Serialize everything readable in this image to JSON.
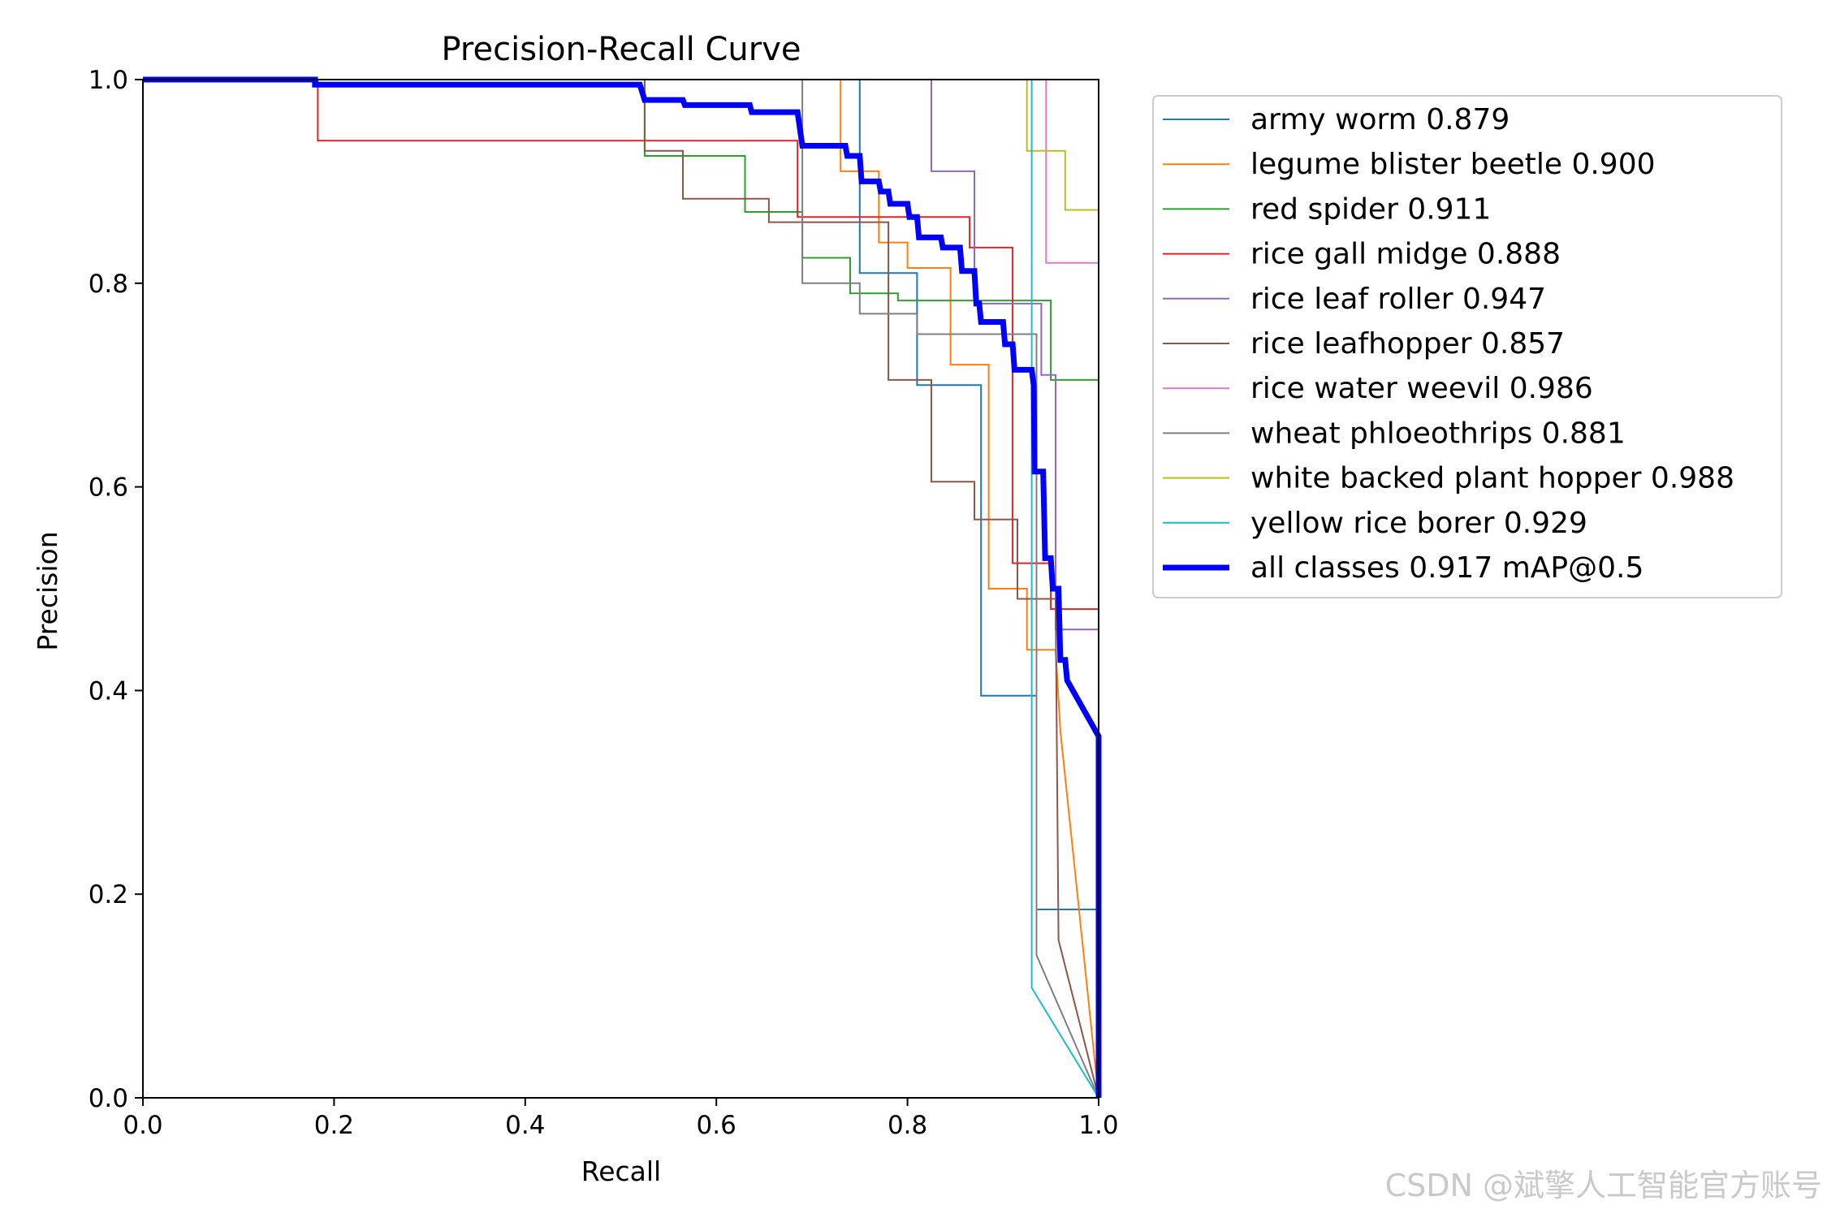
{
  "chart_data": {
    "type": "line",
    "title": "Precision-Recall Curve",
    "xlabel": "Recall",
    "ylabel": "Precision",
    "xlim": [
      0.0,
      1.0
    ],
    "ylim": [
      0.0,
      1.0
    ],
    "xticks": [
      "0.0",
      "0.2",
      "0.4",
      "0.6",
      "0.8",
      "1.0"
    ],
    "yticks": [
      "0.0",
      "0.2",
      "0.4",
      "0.6",
      "0.8",
      "1.0"
    ],
    "grid": false,
    "legend_position": "outside-right-top",
    "series": [
      {
        "name": "army worm 0.879",
        "color": "#1f77b4",
        "width": "thin",
        "steps": [
          [
            0,
            1.0
          ],
          [
            0.75,
            1.0
          ],
          [
            0.75,
            0.81
          ],
          [
            0.81,
            0.81
          ],
          [
            0.81,
            0.7
          ],
          [
            0.877,
            0.7
          ],
          [
            0.877,
            0.395
          ],
          [
            0.935,
            0.395
          ],
          [
            0.935,
            0.185
          ],
          [
            1.0,
            0.185
          ],
          [
            1.0,
            0.0
          ]
        ]
      },
      {
        "name": "legume blister beetle 0.900",
        "color": "#ff7f0e",
        "width": "thin",
        "steps": [
          [
            0,
            1.0
          ],
          [
            0.73,
            1.0
          ],
          [
            0.73,
            0.91
          ],
          [
            0.77,
            0.91
          ],
          [
            0.77,
            0.84
          ],
          [
            0.8,
            0.84
          ],
          [
            0.8,
            0.815
          ],
          [
            0.845,
            0.815
          ],
          [
            0.845,
            0.72
          ],
          [
            0.885,
            0.72
          ],
          [
            0.885,
            0.5
          ],
          [
            0.925,
            0.5
          ],
          [
            0.925,
            0.44
          ],
          [
            0.955,
            0.44
          ],
          [
            0.96,
            0.36
          ],
          [
            1.0,
            0.0
          ]
        ]
      },
      {
        "name": "red spider 0.911",
        "color": "#2ca02c",
        "width": "thin",
        "steps": [
          [
            0,
            1.0
          ],
          [
            0.525,
            1.0
          ],
          [
            0.525,
            0.925
          ],
          [
            0.63,
            0.925
          ],
          [
            0.63,
            0.87
          ],
          [
            0.69,
            0.87
          ],
          [
            0.69,
            0.825
          ],
          [
            0.74,
            0.825
          ],
          [
            0.74,
            0.79
          ],
          [
            0.79,
            0.79
          ],
          [
            0.79,
            0.783
          ],
          [
            0.95,
            0.783
          ],
          [
            0.95,
            0.705
          ],
          [
            1.0,
            0.705
          ],
          [
            1.0,
            0.0
          ]
        ]
      },
      {
        "name": "rice gall midge 0.888",
        "color": "#d62728",
        "width": "thin",
        "steps": [
          [
            0,
            1.0
          ],
          [
            0.183,
            1.0
          ],
          [
            0.183,
            0.94
          ],
          [
            0.685,
            0.94
          ],
          [
            0.685,
            0.865
          ],
          [
            0.865,
            0.865
          ],
          [
            0.865,
            0.835
          ],
          [
            0.91,
            0.835
          ],
          [
            0.91,
            0.525
          ],
          [
            0.95,
            0.525
          ],
          [
            0.95,
            0.48
          ],
          [
            1.0,
            0.48
          ],
          [
            1.0,
            0.0
          ]
        ]
      },
      {
        "name": "rice leaf roller 0.947",
        "color": "#9467bd",
        "width": "thin",
        "steps": [
          [
            0,
            1.0
          ],
          [
            0.825,
            1.0
          ],
          [
            0.825,
            0.91
          ],
          [
            0.87,
            0.91
          ],
          [
            0.87,
            0.78
          ],
          [
            0.94,
            0.78
          ],
          [
            0.94,
            0.71
          ],
          [
            0.955,
            0.71
          ],
          [
            0.955,
            0.46
          ],
          [
            1.0,
            0.46
          ],
          [
            1.0,
            0.0
          ]
        ]
      },
      {
        "name": "rice leafhopper 0.857",
        "color": "#8c564b",
        "width": "thin",
        "steps": [
          [
            0,
            1.0
          ],
          [
            0.525,
            1.0
          ],
          [
            0.525,
            0.93
          ],
          [
            0.565,
            0.93
          ],
          [
            0.565,
            0.883
          ],
          [
            0.655,
            0.883
          ],
          [
            0.655,
            0.86
          ],
          [
            0.78,
            0.86
          ],
          [
            0.78,
            0.705
          ],
          [
            0.825,
            0.705
          ],
          [
            0.825,
            0.605
          ],
          [
            0.87,
            0.605
          ],
          [
            0.87,
            0.568
          ],
          [
            0.915,
            0.568
          ],
          [
            0.915,
            0.49
          ],
          [
            0.955,
            0.49
          ],
          [
            0.958,
            0.155
          ],
          [
            1.0,
            0.0
          ]
        ]
      },
      {
        "name": "rice water weevil 0.986",
        "color": "#e377c2",
        "width": "thin",
        "steps": [
          [
            0,
            1.0
          ],
          [
            0.945,
            1.0
          ],
          [
            0.945,
            0.82
          ],
          [
            1.0,
            0.82
          ],
          [
            1.0,
            0.0
          ]
        ]
      },
      {
        "name": "wheat phloeothrips 0.881",
        "color": "#7f7f7f",
        "width": "thin",
        "steps": [
          [
            0,
            1.0
          ],
          [
            0.69,
            1.0
          ],
          [
            0.69,
            0.8
          ],
          [
            0.75,
            0.8
          ],
          [
            0.75,
            0.77
          ],
          [
            0.81,
            0.77
          ],
          [
            0.81,
            0.75
          ],
          [
            0.935,
            0.75
          ],
          [
            0.935,
            0.14
          ],
          [
            1.0,
            0.0
          ]
        ]
      },
      {
        "name": "white backed plant hopper 0.988",
        "color": "#bcbd22",
        "width": "thin",
        "steps": [
          [
            0,
            1.0
          ],
          [
            0.925,
            1.0
          ],
          [
            0.925,
            0.93
          ],
          [
            0.965,
            0.93
          ],
          [
            0.965,
            0.872
          ],
          [
            1.0,
            0.872
          ],
          [
            1.0,
            0.0
          ]
        ]
      },
      {
        "name": "yellow rice borer 0.929",
        "color": "#17becf",
        "width": "thin",
        "steps": [
          [
            0,
            1.0
          ],
          [
            0.93,
            1.0
          ],
          [
            0.93,
            0.108
          ],
          [
            1.0,
            0.0
          ]
        ]
      },
      {
        "name": "all classes 0.917 mAP@0.5",
        "color": "#0000ff",
        "width": "thick",
        "steps": [
          [
            0,
            1.0
          ],
          [
            0.18,
            1.0
          ],
          [
            0.18,
            0.995
          ],
          [
            0.52,
            0.995
          ],
          [
            0.525,
            0.98
          ],
          [
            0.565,
            0.98
          ],
          [
            0.567,
            0.975
          ],
          [
            0.635,
            0.975
          ],
          [
            0.637,
            0.968
          ],
          [
            0.685,
            0.968
          ],
          [
            0.69,
            0.935
          ],
          [
            0.735,
            0.935
          ],
          [
            0.737,
            0.925
          ],
          [
            0.75,
            0.925
          ],
          [
            0.752,
            0.9
          ],
          [
            0.77,
            0.9
          ],
          [
            0.772,
            0.89
          ],
          [
            0.78,
            0.89
          ],
          [
            0.782,
            0.878
          ],
          [
            0.8,
            0.878
          ],
          [
            0.802,
            0.865
          ],
          [
            0.81,
            0.865
          ],
          [
            0.812,
            0.845
          ],
          [
            0.835,
            0.845
          ],
          [
            0.837,
            0.835
          ],
          [
            0.855,
            0.835
          ],
          [
            0.857,
            0.812
          ],
          [
            0.87,
            0.812
          ],
          [
            0.872,
            0.78
          ],
          [
            0.875,
            0.78
          ],
          [
            0.877,
            0.762
          ],
          [
            0.9,
            0.762
          ],
          [
            0.902,
            0.74
          ],
          [
            0.91,
            0.74
          ],
          [
            0.912,
            0.715
          ],
          [
            0.93,
            0.715
          ],
          [
            0.932,
            0.7
          ],
          [
            0.933,
            0.615
          ],
          [
            0.942,
            0.615
          ],
          [
            0.944,
            0.53
          ],
          [
            0.95,
            0.53
          ],
          [
            0.952,
            0.5
          ],
          [
            0.958,
            0.5
          ],
          [
            0.96,
            0.43
          ],
          [
            0.965,
            0.43
          ],
          [
            0.967,
            0.41
          ],
          [
            1.0,
            0.355
          ],
          [
            1.0,
            0.0
          ]
        ]
      }
    ]
  },
  "watermark": "CSDN @斌擎人工智能官方账号"
}
